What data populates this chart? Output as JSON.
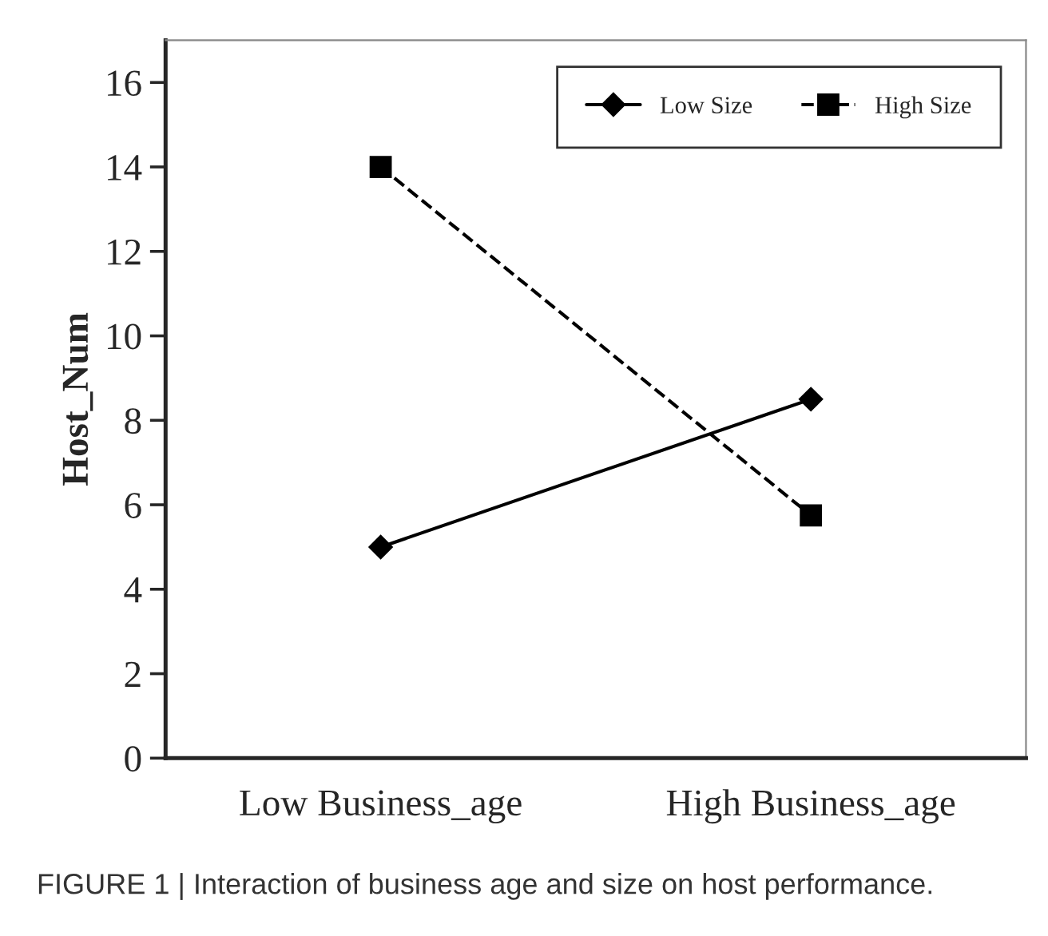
{
  "chart_data": {
    "type": "line",
    "ylabel": "Host_Num",
    "categories": [
      "Low Business_age",
      "High Business_age"
    ],
    "series": [
      {
        "name": "Low Size",
        "color": "#000000",
        "values": [
          5,
          8.5
        ],
        "marker": "diamond",
        "line_style": "solid"
      },
      {
        "name": "High Size",
        "color": "#000000",
        "values": [
          14,
          5.75
        ],
        "marker": "square",
        "line_style": "dashed"
      }
    ],
    "ylim": [
      0,
      17
    ],
    "yticks": [
      0,
      2,
      4,
      6,
      8,
      10,
      12,
      14,
      16
    ],
    "grid": false,
    "legend": "top right",
    "annotations": [
      "FIGURE 1 | Interaction of business age and size on host performance."
    ]
  }
}
